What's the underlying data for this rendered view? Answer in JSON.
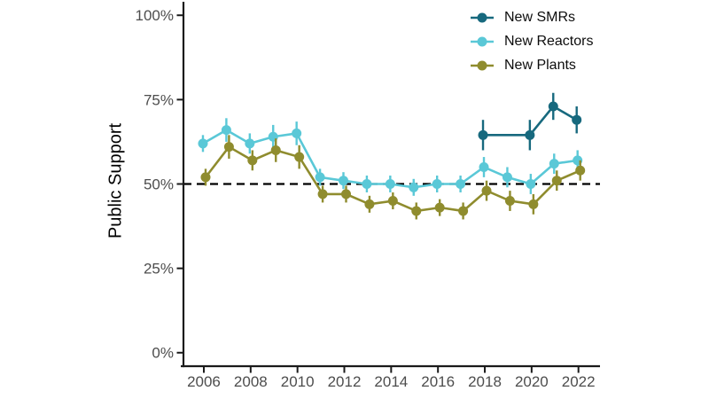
{
  "figure": {
    "background": "#ffffff",
    "axis_color": "#1a1a1a",
    "tick_label_color": "#4d4d4d"
  },
  "legend": {
    "items": [
      {
        "label": "New SMRs",
        "color": "#17697e"
      },
      {
        "label": "New Reactors",
        "color": "#5ac8d7"
      },
      {
        "label": "New Plants",
        "color": "#8f8c2e"
      }
    ]
  },
  "chart_data": {
    "type": "line",
    "title": "",
    "xlabel": "",
    "ylabel": "Public Support",
    "x_ticks": [
      2006,
      2008,
      2010,
      2012,
      2014,
      2016,
      2018,
      2020,
      2022
    ],
    "x_tick_labels": [
      "2006",
      "2008",
      "2010",
      "2012",
      "2014",
      "2016",
      "2018",
      "2020",
      "2022"
    ],
    "y_ticks": [
      0,
      25,
      50,
      75,
      100
    ],
    "y_tick_labels": [
      "0%",
      "25%",
      "50%",
      "75%",
      "100%"
    ],
    "xlim": [
      2005.13,
      2022.92
    ],
    "ylim": [
      -4,
      104
    ],
    "grid": false,
    "legend_position": "top-right",
    "reference_line": {
      "y": 50,
      "style": "dashed",
      "color": "#000000"
    },
    "series": [
      {
        "name": "New SMRs",
        "color": "#17697e",
        "x": [
          2018,
          2020,
          2021,
          2022
        ],
        "values": [
          64.5,
          64.5,
          73,
          69
        ],
        "errors": [
          4.5,
          4.5,
          4,
          4
        ]
      },
      {
        "name": "New Reactors",
        "color": "#5ac8d7",
        "x": [
          2006,
          2007,
          2008,
          2009,
          2010,
          2011,
          2012,
          2013,
          2014,
          2015,
          2016,
          2017,
          2018,
          2019,
          2020,
          2021,
          2022
        ],
        "values": [
          62,
          66,
          62,
          64,
          65,
          52,
          51,
          50,
          50,
          49,
          50,
          50,
          55,
          52,
          50,
          56,
          57
        ],
        "errors": [
          2.5,
          3.5,
          3,
          3.5,
          3.5,
          2.5,
          2.5,
          2.5,
          2.5,
          2.5,
          2.5,
          2.5,
          3,
          3,
          3,
          3,
          3
        ]
      },
      {
        "name": "New Plants",
        "color": "#8f8c2e",
        "x": [
          2006,
          2007,
          2008,
          2009,
          2010,
          2011,
          2012,
          2013,
          2014,
          2015,
          2016,
          2017,
          2018,
          2019,
          2020,
          2021,
          2022
        ],
        "values": [
          52,
          61,
          57,
          60,
          58,
          47,
          47,
          44,
          45,
          42,
          43,
          42,
          48,
          45,
          44,
          51,
          54
        ],
        "errors": [
          2.5,
          3.5,
          3,
          3.5,
          3.5,
          2.5,
          2.5,
          2.5,
          2.5,
          2.5,
          2.5,
          2.5,
          3,
          3,
          3,
          3,
          3
        ]
      }
    ]
  }
}
